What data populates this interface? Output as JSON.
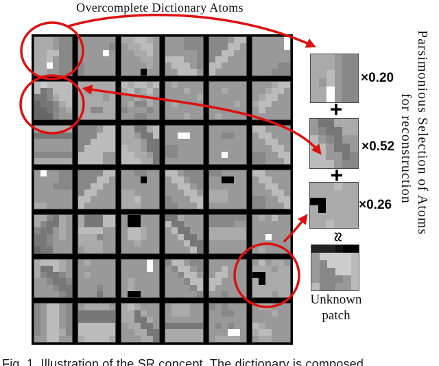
{
  "figure": {
    "title": "Overcomplete Dictionary Atoms",
    "caption": "Fig. 1. Illustration of the SR concept. The dictionary is composed",
    "side_text_line1": "Parsimonious Selection of Atoms",
    "side_text_line2": "for reconstruction",
    "unknown_label_line1": "Unknown",
    "unknown_label_line2": "patch",
    "plus": "+",
    "approx": "≈",
    "colors": {
      "annotation_red": "#dd1010",
      "grid_background": "#000000",
      "page_background": "#ffffff"
    }
  },
  "dictionary": {
    "rows": 7,
    "cols": 6,
    "atoms": [
      "aaa988 aaa988 aabb88 aab988 aaf988 aa9988",
      "999999 999998 9999f9 999999 899999 899999",
      "aabba9 9aabb9 99aab9 999aa9 9999a9 999099",
      "999888 999888 999998 bbb998 9bbb98 99bbb9",
      "8889bb 888bb9 88bb99 8bb999 bb9999 b99999",
      "99999f 99999f 999999 999999 999988 999888",
      "bcbbbb b78bbb 778abb 6778ab 66789a 666899",
      "aaaaaa a9aaaa aaaa9a aaaaaa aa88aa aaaaaa",
      "babbab ab9ab9 99a9a9 9a88a9 899989 998899",
      "9a9999 999a99 99999a 9a9999 999999 999a99",
      "999999 99a999 999999 9999a9 999999 9a9999",
      "999abb 99abb9 9abb99 abb999 9b9999 999999",
      "aaaaaa 777777 999999 999999 888888 aaaaaa",
      "8889bb 888bbb 88bbbb 8bbbbb bbbb99 bbbb99",
      "aa77ab aa977b aaa977 baa977 bbaa97 bbbaa7",
      "999999 99ff99 999999 889999 889999 999999",
      "999999 998899 999999 999999 99f999 999999",
      "bb9999 9bb999 99bb99 999bb9 8899bb 88999b",
      "9f9988 999988 999888 999999 999999 aa9999",
      "8888bb 888bb9 88bb99 8bb999 bb9999 b99999",
      "998899 999099 999999 aa9999 aab999 aaa999",
      "bb9888 9bb988 99bb98 999bb9 8999bb 88999b",
      "889999 990099 999999 aaa999 aaa999 999999",
      "bb9999 9bb999 99bb99 999bb9 8899bb 88999b",
      "aa87a9 a877a9 8779a9 7789a9 778999 677999",
      "a777bb a777bb bbbb99 aaa899 aaaa99 9aaa99",
      "900999 900999 9bba99 9bba99 99a999 999999",
      "77a999 b77999 9b7799 99b779 999b77 9999b7",
      "888888 888899 aaaaaa aaaaaa 999999 999999",
      "9a9b99 999999 999999 99f999 999999 9a9999",
      "abbba9 a77ba9 a87789 998778 999877 999987",
      "9a9999 999999 9a9999 999999 999899 999799",
      "9999f9 9999f9 999999 9a9999 9a9999 900999",
      "8bb988 98bb98 998bb9 9998bb 99998b 999998",
      "999999 99b999 9bb999 bb9999 b99999 998999",
      "9b9aa9 aaa9aa 00aaaa a0aaaa aaaaaa aaa9aa",
      "89bb98 89bb98 89bb98 89bb98 89bba8 99bb99",
      "9aaaa9 777777 777777 bbbbbb bbbbbb abbbba",
      "aba999 aa7a99 aa77a9 9aa779 99aa77 999aa7",
      "9aaa99 9aaa99 999999 777777 aaaaaa aaaaaa",
      "898999 998899 999999 989899 999ff9 9aaaa9",
      "9aa999 999a99 999999 ba9999 abb999 9aa999"
    ]
  },
  "reconstruction": {
    "selected": [
      {
        "coef": "×0.20",
        "pixels": "aaa988 aaa988 aab988 a9b988 aaf988 aaf988"
      },
      {
        "coef": "×0.52",
        "pixels": "977aaa 9877aa b98799 bb9779 bb9978 bbb988"
      },
      {
        "coef": "×0.26",
        "pixels": "aaabaa aaaaaa 00aaaa a0aaaa aaaaaa aabaaa"
      }
    ],
    "unknown_pixels": "222100 9ccccb 98cccb 988ccb 98889b b8899b"
  }
}
